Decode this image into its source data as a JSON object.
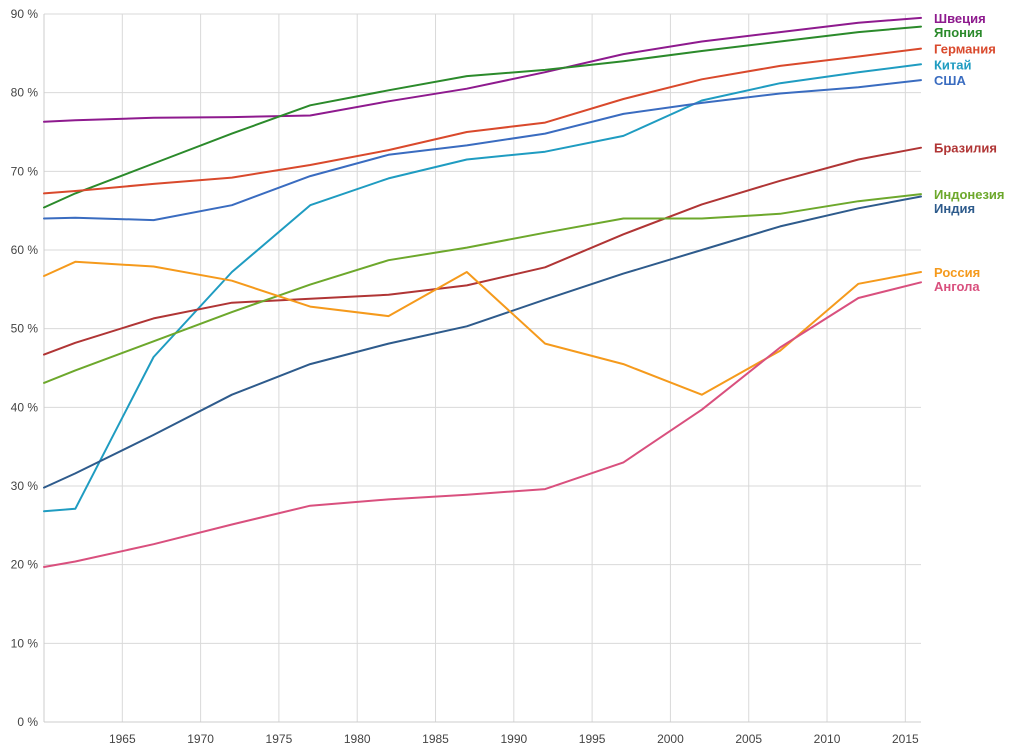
{
  "chart_data": {
    "type": "line",
    "title": "",
    "xlabel": "",
    "ylabel": "",
    "xlim": [
      1960,
      2016
    ],
    "ylim": [
      0,
      90
    ],
    "x_ticks": [
      1965,
      1970,
      1975,
      1980,
      1985,
      1990,
      1995,
      2000,
      2005,
      2010,
      2015
    ],
    "x_tick_labels": [
      "1965",
      "1970",
      "1975",
      "1980",
      "1985",
      "1990",
      "1995",
      "2000",
      "2005",
      "2010",
      "2015"
    ],
    "y_ticks": [
      0,
      10,
      20,
      30,
      40,
      50,
      60,
      70,
      80,
      90
    ],
    "y_tick_labels": [
      "0 %",
      "10 %",
      "20 %",
      "30 %",
      "40 %",
      "50 %",
      "60 %",
      "70 %",
      "80 %",
      "90 %"
    ],
    "grid": true,
    "legend_placement": "right, at line ends",
    "x": [
      1960,
      1962,
      1967,
      1972,
      1977,
      1982,
      1987,
      1992,
      1997,
      2002,
      2007,
      2012,
      2016
    ],
    "series": [
      {
        "name": "Швеция",
        "color": "#8e1a8e",
        "values": [
          76.3,
          76.5,
          76.8,
          76.9,
          77.1,
          78.9,
          80.5,
          82.6,
          84.9,
          86.5,
          87.7,
          88.9,
          89.5
        ]
      },
      {
        "name": "Япония",
        "color": "#2b8a2b",
        "values": [
          65.4,
          67.2,
          71.0,
          74.8,
          78.4,
          80.3,
          82.1,
          82.9,
          84.0,
          85.3,
          86.5,
          87.7,
          88.4
        ]
      },
      {
        "name": "Германия",
        "color": "#d9492c",
        "values": [
          67.2,
          67.5,
          68.4,
          69.2,
          70.8,
          72.7,
          75.0,
          76.2,
          79.2,
          81.7,
          83.4,
          84.6,
          85.6
        ]
      },
      {
        "name": "Китай",
        "color": "#1f9cc1",
        "values": [
          26.8,
          27.1,
          46.4,
          57.2,
          65.7,
          69.1,
          71.5,
          72.5,
          74.5,
          79.0,
          81.2,
          82.6,
          83.6
        ]
      },
      {
        "name": "США",
        "color": "#3a6cc0",
        "values": [
          64.0,
          64.1,
          63.8,
          65.7,
          69.4,
          72.1,
          73.3,
          74.8,
          77.3,
          78.7,
          79.9,
          80.7,
          81.6
        ]
      },
      {
        "name": "Бразилия",
        "color": "#b03535",
        "values": [
          46.7,
          48.2,
          51.3,
          53.3,
          53.8,
          54.3,
          55.5,
          57.8,
          62.0,
          65.8,
          68.8,
          71.5,
          73.0
        ]
      },
      {
        "name": "Индонезия",
        "color": "#6da82c",
        "values": [
          43.1,
          44.7,
          48.4,
          52.1,
          55.6,
          58.7,
          60.3,
          62.2,
          64.0,
          64.0,
          64.6,
          66.2,
          67.1
        ]
      },
      {
        "name": "Индия",
        "color": "#2e5b8c",
        "values": [
          29.8,
          31.6,
          36.5,
          41.6,
          45.5,
          48.1,
          50.3,
          53.7,
          57.0,
          60.0,
          63.0,
          65.3,
          66.8
        ]
      },
      {
        "name": "Россия",
        "color": "#f59a1c",
        "values": [
          56.7,
          58.5,
          57.9,
          56.1,
          52.8,
          51.6,
          57.2,
          48.1,
          45.5,
          41.6,
          47.2,
          55.7,
          57.2
        ]
      },
      {
        "name": "Ангола",
        "color": "#d9507e",
        "values": [
          19.7,
          20.4,
          22.6,
          25.1,
          27.5,
          28.3,
          28.9,
          29.6,
          33.0,
          39.7,
          47.6,
          53.9,
          55.9
        ]
      }
    ]
  }
}
